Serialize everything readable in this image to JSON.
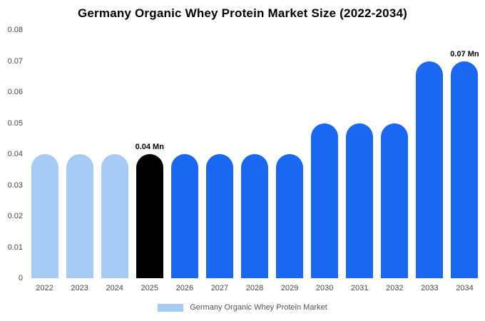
{
  "chart_data": {
    "type": "bar",
    "title": "Germany Organic Whey Protein Market Size (2022-2034)",
    "xlabel": "",
    "ylabel": "",
    "unit": "Mn",
    "categories": [
      "2022",
      "2023",
      "2024",
      "2025",
      "2026",
      "2027",
      "2028",
      "2029",
      "2030",
      "2031",
      "2032",
      "2033",
      "2034"
    ],
    "values": [
      0.04,
      0.04,
      0.04,
      0.04,
      0.04,
      0.04,
      0.04,
      0.04,
      0.05,
      0.05,
      0.05,
      0.07,
      0.07
    ],
    "bar_colors": [
      "#a7cbf7",
      "#a7cbf7",
      "#a7cbf7",
      "#000000",
      "#1a67f2",
      "#1a67f2",
      "#1a67f2",
      "#1a67f2",
      "#1a67f2",
      "#1a67f2",
      "#1a67f2",
      "#1a67f2",
      "#1a67f2"
    ],
    "annotations": {
      "3": "0.04 Mn",
      "12": "0.07 Mn"
    },
    "ylim": [
      0,
      0.08
    ],
    "yticks": [
      0,
      0.01,
      0.02,
      0.03,
      0.04,
      0.05,
      0.06,
      0.07,
      0.08
    ],
    "ytick_labels": [
      "0",
      "0.01",
      "0.02",
      "0.03",
      "0.04",
      "0.05",
      "0.06",
      "0.07",
      "0.08"
    ],
    "grid": false,
    "legend": {
      "label": "Germany Organic Whey Protein Market",
      "swatch_color": "#a7cbf7",
      "position": "bottom"
    }
  }
}
